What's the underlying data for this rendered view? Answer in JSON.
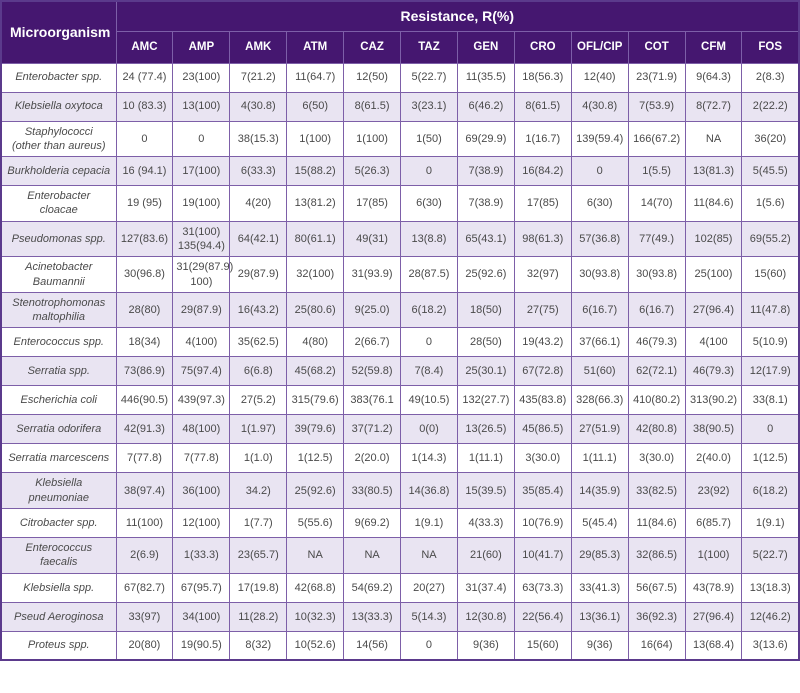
{
  "table": {
    "microorganism_label": "Microorganism",
    "resistance_label": "Resistance, R(%)",
    "columns": [
      "AMC",
      "AMP",
      "AMK",
      "ATM",
      "CAZ",
      "TAZ",
      "GEN",
      "CRO",
      "OFL/CIP",
      "COT",
      "CFM",
      "FOS"
    ],
    "rows": [
      {
        "name": "Enterobacter spp.",
        "values": [
          "24 (77.4)",
          "23(100)",
          "7(21.2)",
          "11(64.7)",
          "12(50)",
          "5(22.7)",
          "11(35.5)",
          "18(56.3)",
          "12(40)",
          "23(71.9)",
          "9(64.3)",
          "2(8.3)"
        ]
      },
      {
        "name": "Klebsiella oxytoca",
        "values": [
          "10 (83.3)",
          "13(100)",
          "4(30.8)",
          "6(50)",
          "8(61.5)",
          "3(23.1)",
          "6(46.2)",
          "8(61.5)",
          "4(30.8)",
          "7(53.9)",
          "8(72.7)",
          "2(22.2)"
        ]
      },
      {
        "name": "Staphylococci\n(other than aureus)",
        "values": [
          "0",
          "0",
          "38(15.3)",
          "1(100)",
          "1(100)",
          "1(50)",
          "69(29.9)",
          "1(16.7)",
          "139(59.4)",
          "166(67.2)",
          "NA",
          "36(20)"
        ]
      },
      {
        "name": "Burkholderia cepacia",
        "values": [
          "16 (94.1)",
          "17(100)",
          "6(33.3)",
          "15(88.2)",
          "5(26.3)",
          "0",
          "7(38.9)",
          "16(84.2)",
          "0",
          "1(5.5)",
          "13(81.3)",
          "5(45.5)"
        ]
      },
      {
        "name": "Enterobacter\ncloacae",
        "values": [
          "19 (95)",
          "19(100)",
          "4(20)",
          "13(81.2)",
          "17(85)",
          "6(30)",
          "7(38.9)",
          "17(85)",
          "6(30)",
          "14(70)",
          "11(84.6)",
          "1(5.6)"
        ]
      },
      {
        "name": "Pseudomonas spp.",
        "values": [
          "127(83.6)",
          "31(100)\n135(94.4)",
          "64(42.1)",
          "80(61.1)",
          "49(31)",
          "13(8.8)",
          "65(43.1)",
          "98(61.3)",
          "57(36.8)",
          "77(49.)",
          "102(85)",
          "69(55.2)"
        ]
      },
      {
        "name": "Acinetobacter\nBaumannii",
        "values": [
          "30(96.8)",
          "31(29(87.9)\n100)",
          "29(87.9)",
          "32(100)",
          "31(93.9)",
          "28(87.5)",
          "25(92.6)",
          "32(97)",
          "30(93.8)",
          "30(93.8)",
          "25(100)",
          "15(60)"
        ]
      },
      {
        "name": "Stenotrophomonas\nmaltophilia",
        "values": [
          "28(80)",
          "29(87.9)",
          "16(43.2)",
          "25(80.6)",
          "9(25.0)",
          "6(18.2)",
          "18(50)",
          "27(75)",
          "6(16.7)",
          "6(16.7)",
          "27(96.4)",
          "11(47.8)"
        ]
      },
      {
        "name": "Enterococcus spp.",
        "values": [
          "18(34)",
          "4(100)",
          "35(62.5)",
          "4(80)",
          "2(66.7)",
          "0",
          "28(50)",
          "19(43.2)",
          "37(66.1)",
          "46(79.3)",
          "4(100",
          "5(10.9)"
        ]
      },
      {
        "name": "Serratia spp.",
        "values": [
          "73(86.9)",
          "75(97.4)",
          "6(6.8)",
          "45(68.2)",
          "52(59.8)",
          "7(8.4)",
          "25(30.1)",
          "67(72.8)",
          "51(60)",
          "62(72.1)",
          "46(79.3)",
          "12(17.9)"
        ]
      },
      {
        "name": "Escherichia coli",
        "values": [
          "446(90.5)",
          "439(97.3)",
          "27(5.2)",
          "315(79.6)",
          "383(76.1",
          "49(10.5)",
          "132(27.7)",
          "435(83.8)",
          "328(66.3)",
          "410(80.2)",
          "313(90.2)",
          "33(8.1)"
        ]
      },
      {
        "name": "Serratia odorifera",
        "values": [
          "42(91.3)",
          "48(100)",
          "1(1.97)",
          "39(79.6)",
          "37(71.2)",
          "0(0)",
          "13(26.5)",
          "45(86.5)",
          "27(51.9)",
          "42(80.8)",
          "38(90.5)",
          "0"
        ]
      },
      {
        "name": "Serratia marcescens",
        "values": [
          "7(77.8)",
          "7(77.8)",
          "1(1.0)",
          "1(12.5)",
          "2(20.0)",
          "1(14.3)",
          "1(11.1)",
          "3(30.0)",
          "1(11.1)",
          "3(30.0)",
          "2(40.0)",
          "1(12.5)"
        ]
      },
      {
        "name": "Klebsiella\npneumoniae",
        "values": [
          "38(97.4)",
          "36(100)",
          "34.2)",
          "25(92.6)",
          "33(80.5)",
          "14(36.8)",
          "15(39.5)",
          "35(85.4)",
          "14(35.9)",
          "33(82.5)",
          "23(92)",
          "6(18.2)"
        ]
      },
      {
        "name": "Citrobacter spp.",
        "values": [
          "11(100)",
          "12(100)",
          "1(7.7)",
          "5(55.6)",
          "9(69.2)",
          "1(9.1)",
          "4(33.3)",
          "10(76.9)",
          "5(45.4)",
          "11(84.6)",
          "6(85.7)",
          "1(9.1)"
        ]
      },
      {
        "name": "Enterococcus\nfaecalis",
        "values": [
          "2(6.9)",
          "1(33.3)",
          "23(65.7)",
          "NA",
          "NA",
          "NA",
          "21(60)",
          "10(41.7)",
          "29(85.3)",
          "32(86.5)",
          "1(100)",
          "5(22.7)"
        ]
      },
      {
        "name": "Klebsiella spp.",
        "values": [
          "67(82.7)",
          "67(95.7)",
          "17(19.8)",
          "42(68.8)",
          "54(69.2)",
          "20(27)",
          "31(37.4)",
          "63(73.3)",
          "33(41.3)",
          "56(67.5)",
          "43(78.9)",
          "13(18.3)"
        ]
      },
      {
        "name": "Pseud Aeroginosa",
        "values": [
          "33(97)",
          "34(100)",
          "11(28.2)",
          "10(32.3)",
          "13(33.3)",
          "5(14.3)",
          "12(30.8)",
          "22(56.4)",
          "13(36.1)",
          "36(92.3)",
          "27(96.4)",
          "12(46.2)"
        ]
      },
      {
        "name": "Proteus spp.",
        "values": [
          "20(80)",
          "19(90.5)",
          "8(32)",
          "10(52.6)",
          "14(56)",
          "0",
          "9(36)",
          "15(60)",
          "9(36)",
          "16(64)",
          "13(68.4)",
          "3(13.6)"
        ]
      }
    ]
  },
  "colors": {
    "header_bg": "#451770",
    "row_alt_bg": "#e9e4f2",
    "border": "#7d5fa8",
    "text": "#4a4a4a"
  }
}
